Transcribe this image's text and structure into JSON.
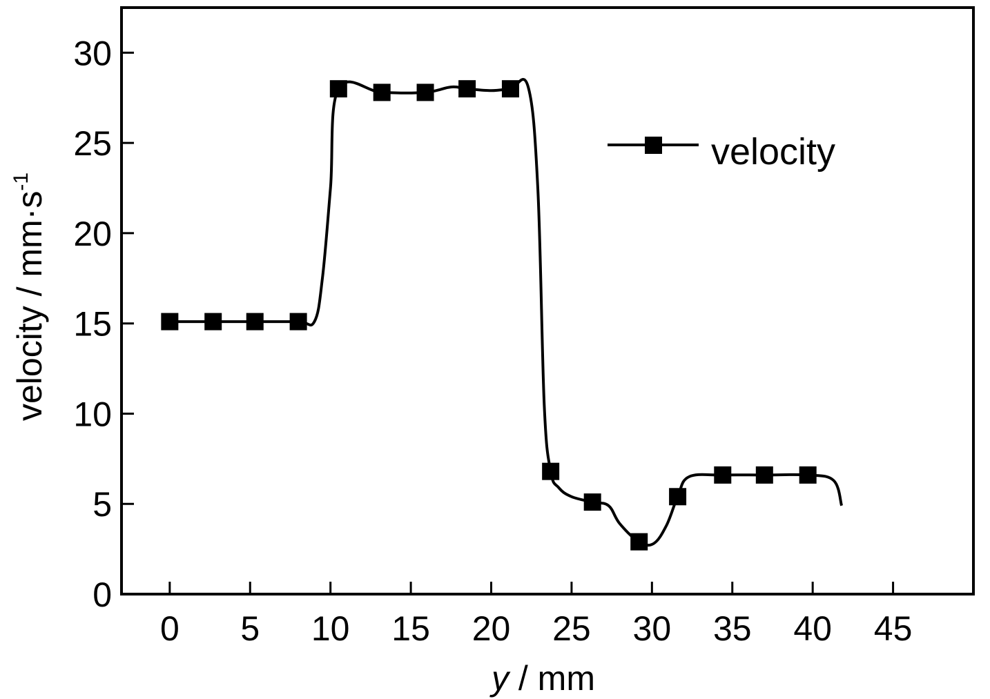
{
  "chart_data": {
    "type": "line",
    "xlabel": {
      "italic": "y",
      "rest": " / mm"
    },
    "ylabel": {
      "main": "velocity / mm·s",
      "superscript": "-1"
    },
    "xlim": [
      -3,
      50
    ],
    "ylim": [
      0,
      32.5
    ],
    "xticks": [
      0,
      5,
      10,
      15,
      20,
      25,
      30,
      35,
      40,
      45
    ],
    "yticks": [
      0,
      5,
      10,
      15,
      20,
      25,
      30
    ],
    "grid": false,
    "legend_position": "top-right",
    "series": [
      {
        "name": "velocity",
        "marker": "square",
        "color": "#000000",
        "x": [
          0,
          2.7,
          5.3,
          8,
          9,
          9.5,
          10,
          10.5,
          13.2,
          15.9,
          17.5,
          18.5,
          20,
          21.2,
          22.3,
          22.9,
          23.3,
          23.7,
          24.2,
          25,
          26.3,
          27.3,
          28,
          29.2,
          30.1,
          30.9,
          31.6,
          32.3,
          34.4,
          37,
          39.7,
          41.3,
          41.8
        ],
        "y": [
          15.1,
          15.1,
          15.1,
          15.1,
          15.1,
          17.5,
          22.5,
          28.0,
          27.8,
          27.8,
          28.1,
          28.0,
          27.9,
          28.0,
          28.1,
          22.5,
          10.5,
          6.8,
          5.9,
          5.4,
          5.1,
          4.9,
          3.9,
          2.9,
          2.8,
          3.8,
          5.4,
          6.5,
          6.6,
          6.6,
          6.6,
          6.3,
          4.9
        ],
        "markers": [
          {
            "x": 0,
            "y": 15.1
          },
          {
            "x": 2.7,
            "y": 15.1
          },
          {
            "x": 5.3,
            "y": 15.1
          },
          {
            "x": 8,
            "y": 15.1
          },
          {
            "x": 10.5,
            "y": 28.0
          },
          {
            "x": 13.2,
            "y": 27.8
          },
          {
            "x": 15.9,
            "y": 27.8
          },
          {
            "x": 18.5,
            "y": 28.0
          },
          {
            "x": 21.2,
            "y": 28.0
          },
          {
            "x": 23.7,
            "y": 6.8
          },
          {
            "x": 26.3,
            "y": 5.1
          },
          {
            "x": 29.2,
            "y": 2.9
          },
          {
            "x": 31.6,
            "y": 5.4
          },
          {
            "x": 34.4,
            "y": 6.6
          },
          {
            "x": 37,
            "y": 6.6
          },
          {
            "x": 39.7,
            "y": 6.6
          }
        ]
      }
    ]
  }
}
